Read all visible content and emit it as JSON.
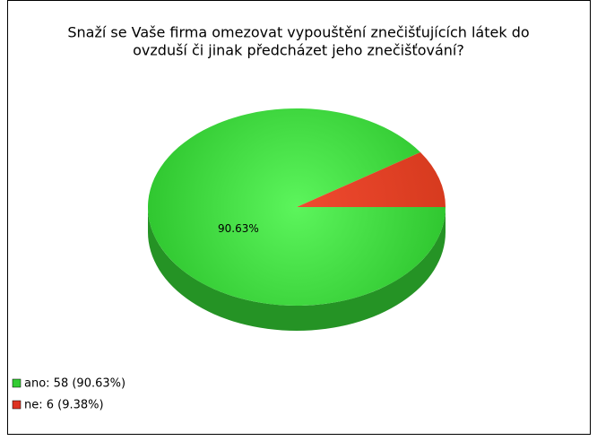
{
  "chart_data": {
    "type": "pie",
    "title": [
      "Snaží se Vaše firma omezovat vypouštění znečišťujících látek do",
      "ovzduší či jinak předcházet jeho znečišťování?"
    ],
    "categories": [
      "ano: 58 (90.63%)",
      "ne: 6 (9.38%)"
    ],
    "values": [
      90.63,
      9.38
    ],
    "value_labels": [
      "90.63%",
      null
    ],
    "colors": [
      "#33cc33",
      "#dd3322"
    ],
    "legend": "bottom-left"
  }
}
